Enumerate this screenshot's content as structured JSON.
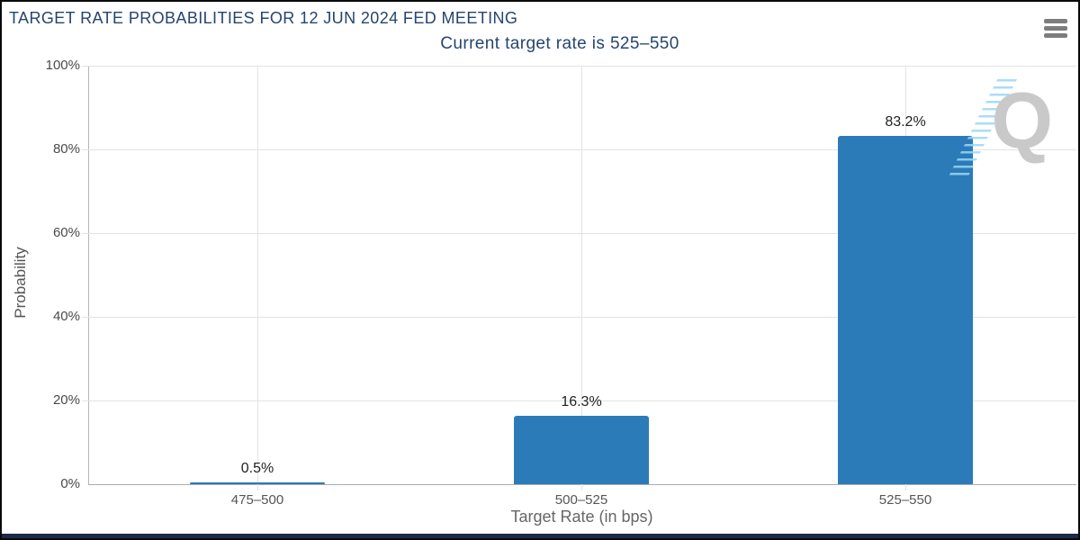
{
  "header": {
    "menu_icon": "hamburger-icon"
  },
  "chart_data": {
    "type": "bar",
    "title": "TARGET RATE PROBABILITIES FOR 12 JUN 2024 FED MEETING",
    "subtitle": "Current target rate is 525–550",
    "categories": [
      "475–500",
      "500–525",
      "525–550"
    ],
    "values": [
      0.5,
      16.3,
      83.2
    ],
    "value_labels": [
      "0.5%",
      "16.3%",
      "83.2%"
    ],
    "xlabel": "Target Rate (in bps)",
    "ylabel": "Probability",
    "ylim": [
      0,
      100
    ],
    "ytick_labels": [
      "100%",
      "80%",
      "60%",
      "40%",
      "20%",
      "0%"
    ],
    "grid": true,
    "legend": false,
    "bar_color": "#2b7bb8",
    "text_color": "#25456f",
    "watermark_letter": "Q"
  }
}
